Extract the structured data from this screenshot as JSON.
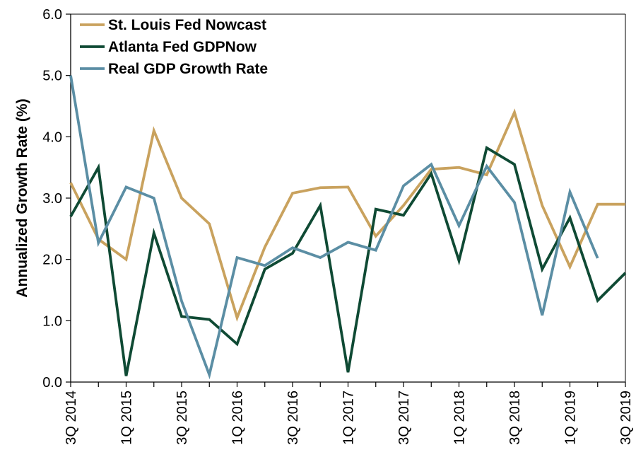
{
  "chart_data": {
    "type": "line",
    "ylabel": "Annualized Growth Rate (%)",
    "ylim": [
      0,
      6
    ],
    "yticks": [
      "0.0",
      "1.0",
      "2.0",
      "3.0",
      "4.0",
      "5.0",
      "6.0"
    ],
    "categories": [
      "3Q 2014",
      "4Q 2014",
      "1Q 2015",
      "2Q 2015",
      "3Q 2015",
      "4Q 2015",
      "1Q 2016",
      "2Q 2016",
      "3Q 2016",
      "4Q 2016",
      "1Q 2017",
      "2Q 2017",
      "3Q 2017",
      "4Q 2017",
      "1Q 2018",
      "2Q 2018",
      "3Q 2018",
      "4Q 2018",
      "1Q 2019",
      "2Q 2019",
      "3Q 2019"
    ],
    "xtick_labels": [
      "3Q 2014",
      "",
      "1Q 2015",
      "",
      "3Q 2015",
      "",
      "1Q 2016",
      "",
      "3Q 2016",
      "",
      "1Q 2017",
      "",
      "3Q 2017",
      "",
      "1Q 2018",
      "",
      "3Q 2018",
      "",
      "1Q 2019",
      "",
      "3Q 2019"
    ],
    "legend_position": "top-left",
    "series": [
      {
        "name": "St. Louis Fed Nowcast",
        "color": "#c9a25e",
        "values": [
          3.25,
          2.33,
          2.0,
          4.1,
          3.0,
          2.58,
          1.05,
          2.2,
          3.08,
          3.17,
          3.18,
          2.38,
          2.88,
          3.47,
          3.5,
          3.38,
          4.4,
          2.88,
          1.88,
          2.9,
          2.9
        ]
      },
      {
        "name": "Atlanta Fed GDPNow",
        "color": "#0f4a34",
        "values": [
          2.7,
          3.5,
          0.1,
          2.43,
          1.07,
          1.02,
          0.62,
          1.84,
          2.1,
          2.88,
          0.16,
          2.82,
          2.72,
          3.4,
          1.98,
          3.82,
          3.55,
          1.84,
          2.68,
          1.33,
          1.78
        ]
      },
      {
        "name": "Real GDP Growth Rate",
        "color": "#5b8ea4",
        "values": [
          5.0,
          2.27,
          3.18,
          3.0,
          1.32,
          0.12,
          2.03,
          1.9,
          2.19,
          2.03,
          2.28,
          2.15,
          3.2,
          3.55,
          2.55,
          3.52,
          2.93,
          1.09,
          3.1,
          2.02,
          null
        ]
      }
    ]
  }
}
